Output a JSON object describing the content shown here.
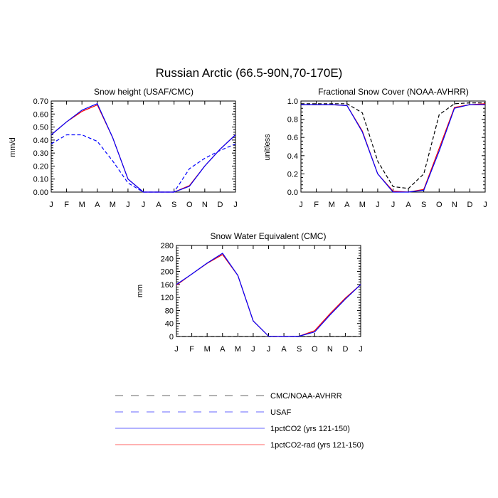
{
  "figure": {
    "title": "Russian Arctic (66.5-90N,70-170E)"
  },
  "colors": {
    "obs1": "#000000",
    "obs2": "#0000ff",
    "model_blue": "#0000ff",
    "model_red": "#ff0000"
  },
  "legend": [
    {
      "label": "CMC/NOAA-AVHRR",
      "color": "#000000",
      "dashed": true,
      "faint": true
    },
    {
      "label": "USAF",
      "color": "#0000ff",
      "dashed": true,
      "faint": true
    },
    {
      "label": "1pctCO2 (yrs 121-150)",
      "color": "#0000ff",
      "dashed": false,
      "faint": true
    },
    {
      "label": "1pctCO2-rad (yrs 121-150)",
      "color": "#ff0000",
      "dashed": false,
      "faint": true
    }
  ],
  "chart_data": [
    {
      "type": "line",
      "title": "Snow height (USAF/CMC)",
      "ylabel": "mm/d",
      "xlabel": "",
      "categories": [
        "J",
        "F",
        "M",
        "A",
        "M",
        "J",
        "J",
        "A",
        "S",
        "O",
        "N",
        "D",
        "J"
      ],
      "ylim": [
        0,
        0.7
      ],
      "yticks": [
        "0.00",
        "0.10",
        "0.20",
        "0.30",
        "0.40",
        "0.50",
        "0.60",
        "0.70"
      ],
      "series": [
        {
          "color": "#0000ff",
          "dashed": true,
          "values": [
            0.37,
            0.44,
            0.44,
            0.39,
            0.24,
            0.07,
            0.0,
            0.0,
            0.0,
            0.18,
            0.26,
            0.32,
            0.37
          ]
        },
        {
          "color": "#ff0000",
          "dashed": false,
          "values": [
            0.44,
            0.54,
            0.62,
            0.67,
            0.42,
            0.1,
            0.0,
            0.0,
            0.0,
            0.05,
            0.2,
            0.33,
            0.44
          ]
        },
        {
          "color": "#0000ff",
          "dashed": false,
          "values": [
            0.44,
            0.54,
            0.63,
            0.68,
            0.42,
            0.1,
            0.0,
            0.0,
            0.0,
            0.045,
            0.2,
            0.33,
            0.44
          ]
        }
      ]
    },
    {
      "type": "line",
      "title": "Fractional Snow Cover (NOAA-AVHRR)",
      "ylabel": "unitless",
      "xlabel": "",
      "categories": [
        "J",
        "F",
        "M",
        "A",
        "M",
        "J",
        "J",
        "A",
        "S",
        "O",
        "N",
        "D",
        "J"
      ],
      "ylim": [
        0,
        1.0
      ],
      "yticks": [
        "0.0",
        "0.2",
        "0.4",
        "0.6",
        "0.8",
        "1.0"
      ],
      "series": [
        {
          "color": "#000000",
          "dashed": true,
          "values": [
            0.97,
            0.97,
            0.97,
            0.97,
            0.87,
            0.34,
            0.06,
            0.04,
            0.2,
            0.85,
            0.97,
            0.98,
            0.98
          ]
        },
        {
          "color": "#ff0000",
          "dashed": false,
          "values": [
            0.96,
            0.96,
            0.96,
            0.95,
            0.67,
            0.2,
            0.01,
            0.0,
            0.03,
            0.48,
            0.93,
            0.96,
            0.97
          ]
        },
        {
          "color": "#0000ff",
          "dashed": false,
          "values": [
            0.96,
            0.96,
            0.96,
            0.95,
            0.66,
            0.2,
            0.0,
            0.0,
            0.02,
            0.45,
            0.92,
            0.96,
            0.96
          ]
        }
      ]
    },
    {
      "type": "line",
      "title": "Snow Water Equivalent (CMC)",
      "ylabel": "mm",
      "xlabel": "",
      "categories": [
        "J",
        "F",
        "M",
        "A",
        "M",
        "J",
        "J",
        "A",
        "S",
        "O",
        "N",
        "D",
        "J"
      ],
      "ylim": [
        0,
        280
      ],
      "yticks": [
        "0",
        "40",
        "80",
        "120",
        "160",
        "200",
        "240",
        "280"
      ],
      "series": [
        {
          "color": "#000000",
          "dashed": true,
          "values": [
            0,
            0,
            0,
            0,
            0,
            0,
            0,
            0,
            0,
            0,
            0,
            0,
            0
          ]
        },
        {
          "color": "#ff0000",
          "dashed": false,
          "values": [
            158,
            192,
            225,
            252,
            188,
            48,
            1,
            0,
            1,
            18,
            70,
            118,
            160
          ]
        },
        {
          "color": "#0000ff",
          "dashed": false,
          "values": [
            160,
            192,
            226,
            256,
            188,
            48,
            1,
            0,
            1,
            14,
            66,
            115,
            160
          ]
        }
      ]
    }
  ]
}
